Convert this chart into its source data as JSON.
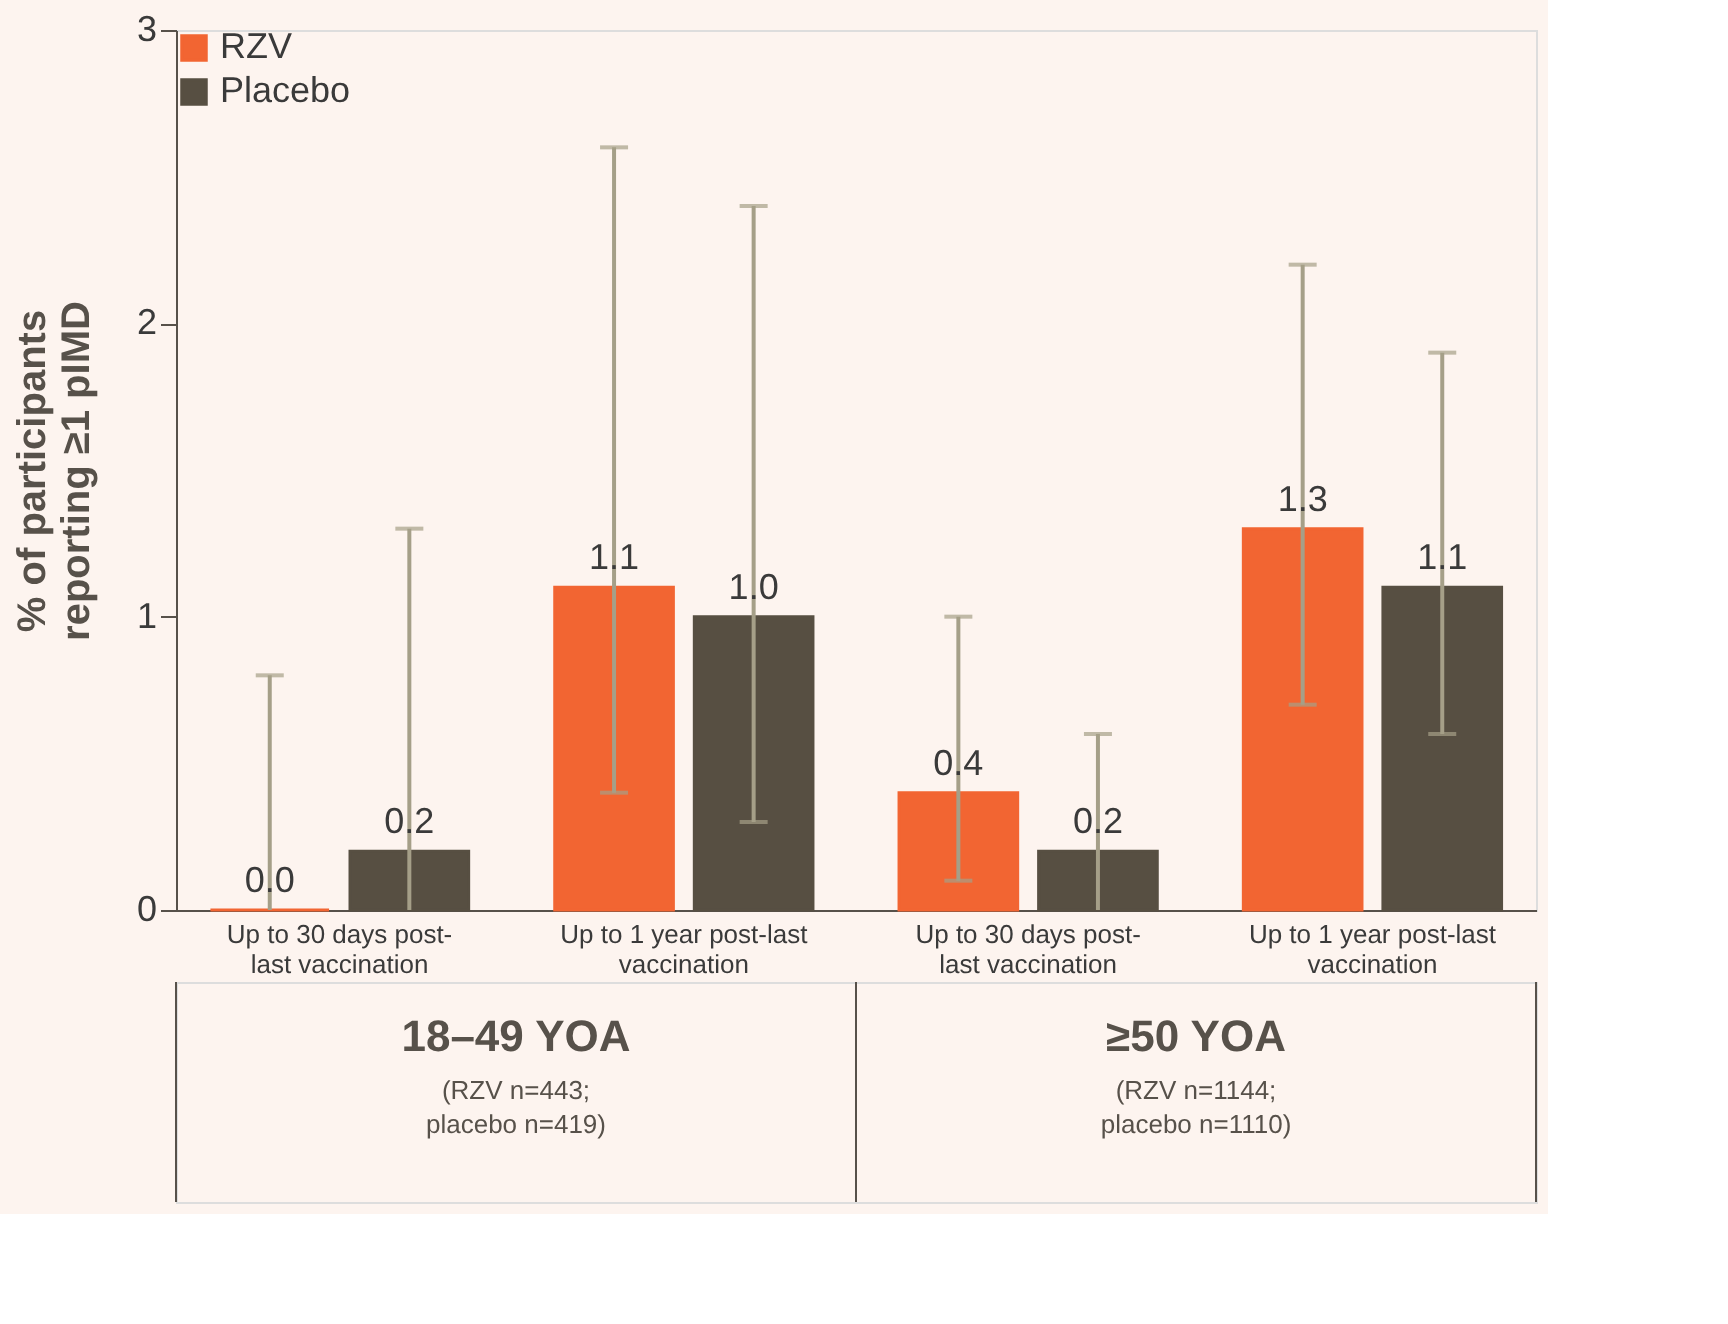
{
  "chart_data": {
    "type": "bar",
    "ylabel": "% of participants\nreporting ≥1 pIMD",
    "categories": [
      "Up to 30 days post-\nlast vaccination",
      "Up to 1 year post-last\nvaccination",
      "Up to 30 days post-\nlast vaccination",
      "Up to 1 year post-last\nvaccination"
    ],
    "series": [
      {
        "name": "RZV",
        "color": "#f26532",
        "values": [
          0.0,
          1.1,
          0.4,
          1.3
        ],
        "value_labels": [
          "0.0",
          "1.1",
          "0.4",
          "1.3"
        ],
        "errors": [
          [
            0,
            0.8
          ],
          [
            0.4,
            2.6
          ],
          [
            0.1,
            1.0
          ],
          [
            0.7,
            2.2
          ]
        ]
      },
      {
        "name": "Placebo",
        "color": "#574f42",
        "values": [
          0.2,
          1.0,
          0.2,
          1.1
        ],
        "value_labels": [
          "0.2",
          "1.0",
          "0.2",
          "1.1"
        ],
        "errors": [
          [
            0,
            1.3
          ],
          [
            0.3,
            2.4
          ],
          [
            0,
            0.6
          ],
          [
            0.6,
            1.9
          ]
        ]
      }
    ],
    "ylim": [
      0,
      3
    ],
    "yticks": [
      0,
      1,
      2,
      3
    ],
    "grid": false,
    "legend": "top left",
    "annotations": [
      "18–49 YOA",
      "(RZV n=443;\nplacebo n=419)",
      "≥50 YOA",
      "(RZV n=1144;\nplacebo n=1110)"
    ]
  }
}
